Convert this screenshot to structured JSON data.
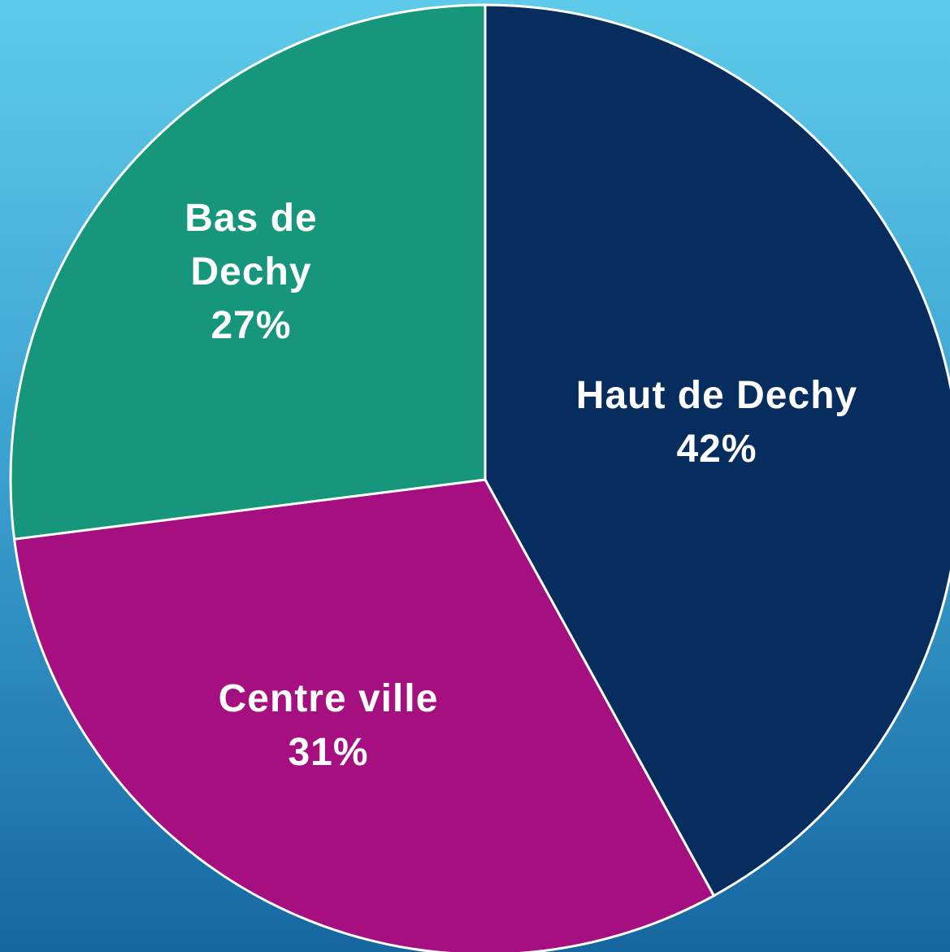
{
  "chart_data": {
    "type": "pie",
    "categories": [
      "Haut de Dechy",
      "Centre ville",
      "Bas de Dechy"
    ],
    "values": [
      42,
      31,
      27
    ],
    "value_labels": [
      "42%",
      "31%",
      "27%"
    ],
    "colors": [
      "#062d5e",
      "#a50f7f",
      "#16967b"
    ]
  }
}
